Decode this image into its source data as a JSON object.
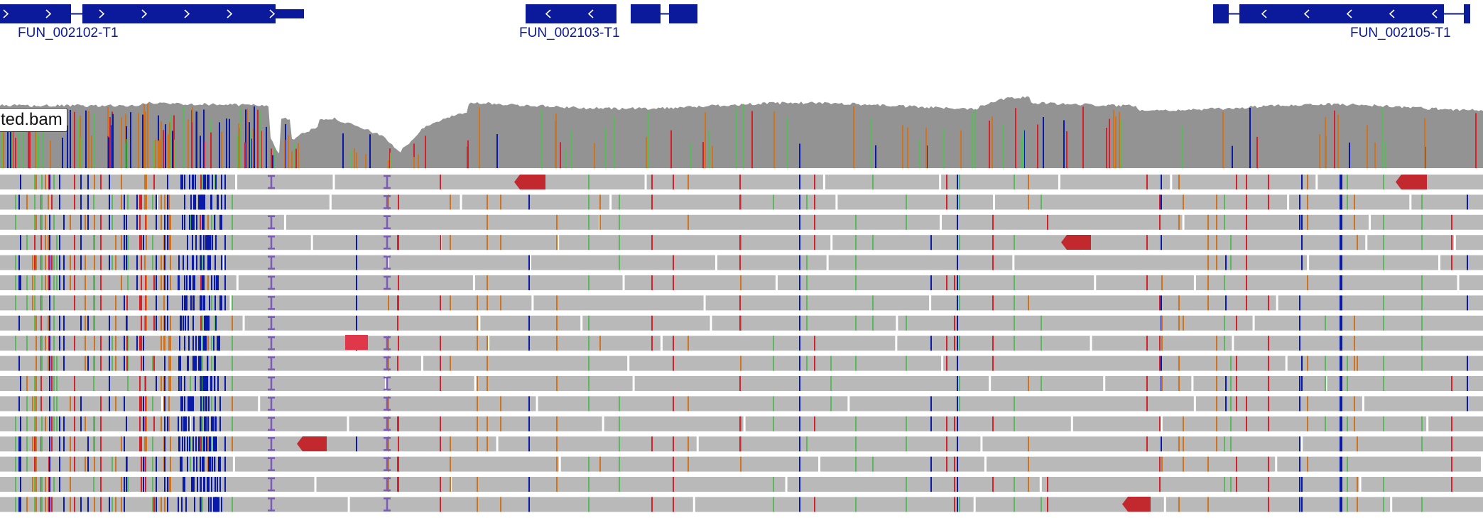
{
  "genes": {
    "gene1": {
      "label": "FUN_002102-T1",
      "strand": "+"
    },
    "gene2": {
      "label": "FUN_002103-T1",
      "strand": "-"
    },
    "gene3": {
      "label": "FUN_002105-T1",
      "strand": "-"
    }
  },
  "alignment_track": {
    "label": "ted.bam"
  },
  "colors": {
    "gene": "#0a1a9a",
    "coverage": "#939393",
    "read": "#b9b9b9",
    "base_A": "#5cb85c",
    "base_C": "#0a1aa8",
    "base_G": "#d0731f",
    "base_T": "#d6202a",
    "insertion": "#7a5bb5",
    "clip": "#c1292e"
  }
}
